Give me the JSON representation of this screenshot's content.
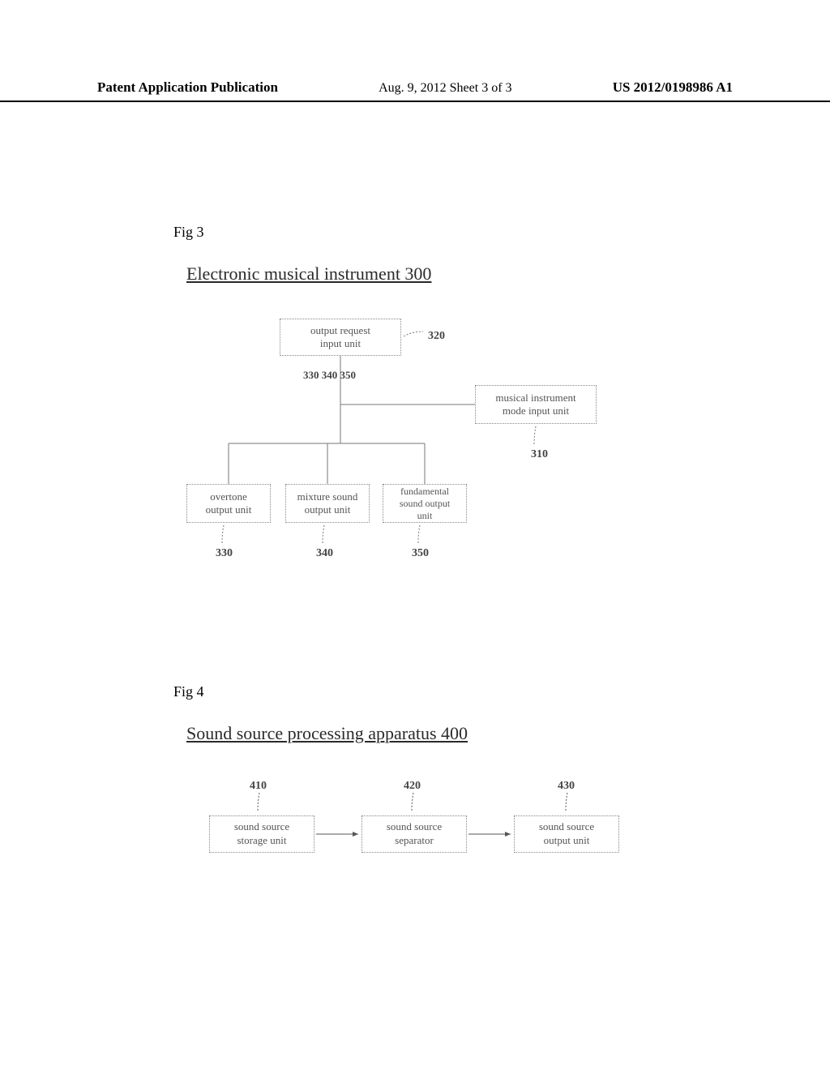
{
  "header": {
    "left": "Patent Application Publication",
    "center": "Aug. 9, 2012  Sheet 3 of 3",
    "right": "US 2012/0198986 A1"
  },
  "fig3": {
    "label": "Fig 3",
    "title": "Electronic musical instrument 300",
    "top_box": "output request\ninput unit",
    "ref_320": "320",
    "ref_row": "330 340 350",
    "right_box": "musical instrument\nmode input unit",
    "ref_310": "310",
    "b1": "overtone\noutput unit",
    "b2": "mixture sound\noutput unit",
    "b3": "fundamental\nsound output\nunit",
    "ref_330": "330",
    "ref_340": "340",
    "ref_350": "350",
    "styling": {
      "box_border_color": "#888888",
      "text_color": "#555555",
      "ref_color": "#444444",
      "font_size_box": 13,
      "font_size_ref": 14,
      "line_color": "#777777"
    }
  },
  "fig4": {
    "label": "Fig 4",
    "title": "Sound source processing apparatus 400",
    "b1": "sound source\nstorage unit",
    "b2": "sound source\nseparator",
    "b3": "sound source\noutput unit",
    "ref_410": "410",
    "ref_420": "420",
    "ref_430": "430",
    "styling": {
      "box_border_color": "#888888",
      "text_color": "#555555",
      "ref_color": "#444444",
      "arrow_color": "#555555"
    }
  }
}
